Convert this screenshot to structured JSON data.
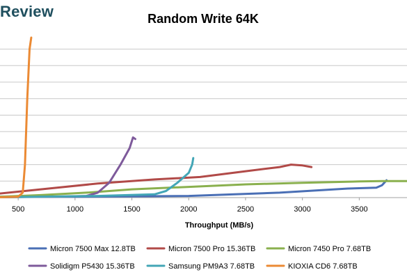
{
  "brand": "Review",
  "chart_data": {
    "type": "line",
    "title": "Random Write 64K",
    "xlabel": "Throughput (MB/s)",
    "ylabel": "",
    "xlim": [
      340,
      3920
    ],
    "ylim": [
      0,
      9.7
    ],
    "x_ticks": [
      500,
      1000,
      1500,
      2000,
      2500,
      3000,
      3500
    ],
    "y_gridlines": [
      1,
      2,
      3,
      4,
      5,
      6,
      7,
      8,
      9
    ],
    "grid": true,
    "legend_position": "bottom",
    "series": [
      {
        "name": "Micron 7500 Max 12.8TB",
        "color": "#4a6fb5",
        "points": [
          [
            340,
            0.05
          ],
          [
            1000,
            0.05
          ],
          [
            2000,
            0.1
          ],
          [
            2800,
            0.3
          ],
          [
            3400,
            0.55
          ],
          [
            3650,
            0.6
          ],
          [
            3700,
            0.75
          ],
          [
            3740,
            1.05
          ]
        ]
      },
      {
        "name": "Micron 7500 Pro 15.36TB",
        "color": "#b14a48",
        "points": [
          [
            340,
            0.25
          ],
          [
            700,
            0.5
          ],
          [
            1200,
            0.85
          ],
          [
            1700,
            1.1
          ],
          [
            2100,
            1.25
          ],
          [
            2500,
            1.6
          ],
          [
            2800,
            1.85
          ],
          [
            2900,
            2.0
          ],
          [
            3000,
            1.95
          ],
          [
            3080,
            1.85
          ]
        ]
      },
      {
        "name": "Micron 7450 Pro 7.68TB",
        "color": "#8ab04e",
        "points": [
          [
            340,
            0.05
          ],
          [
            700,
            0.15
          ],
          [
            1100,
            0.3
          ],
          [
            1500,
            0.5
          ],
          [
            2000,
            0.65
          ],
          [
            2500,
            0.8
          ],
          [
            3000,
            0.9
          ],
          [
            3500,
            0.98
          ],
          [
            3700,
            1.0
          ],
          [
            3920,
            1.0
          ]
        ]
      },
      {
        "name": "Solidigm P5430 15.36TB",
        "color": "#7e5a9b",
        "points": [
          [
            340,
            0.02
          ],
          [
            800,
            0.05
          ],
          [
            1100,
            0.1
          ],
          [
            1200,
            0.3
          ],
          [
            1300,
            0.9
          ],
          [
            1400,
            2.0
          ],
          [
            1480,
            3.0
          ],
          [
            1510,
            3.65
          ],
          [
            1530,
            3.55
          ]
        ]
      },
      {
        "name": "Samsung PM9A3 7.68TB",
        "color": "#43a6b6",
        "points": [
          [
            340,
            0.02
          ],
          [
            1200,
            0.1
          ],
          [
            1700,
            0.2
          ],
          [
            1800,
            0.4
          ],
          [
            1900,
            0.9
          ],
          [
            2000,
            1.5
          ],
          [
            2030,
            2.0
          ],
          [
            2040,
            2.4
          ]
        ]
      },
      {
        "name": "KIOXIA CD6 7.68TB",
        "color": "#eb8a34",
        "points": [
          [
            340,
            0.02
          ],
          [
            500,
            0.05
          ],
          [
            540,
            0.3
          ],
          [
            560,
            2.0
          ],
          [
            580,
            6.0
          ],
          [
            600,
            9.0
          ],
          [
            615,
            9.7
          ]
        ]
      }
    ]
  }
}
